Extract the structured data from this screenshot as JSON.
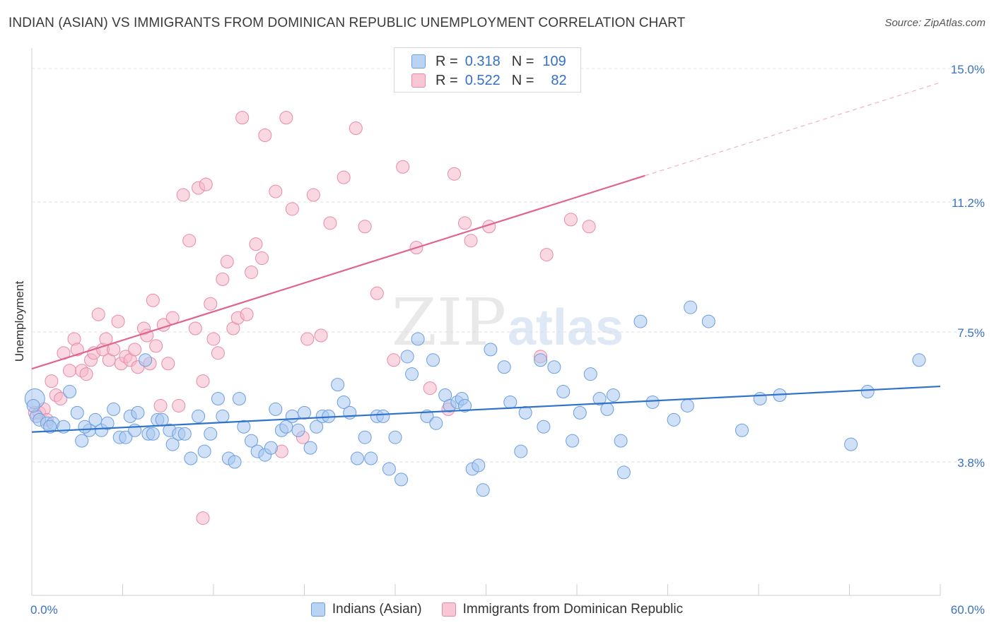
{
  "title": "INDIAN (ASIAN) VS IMMIGRANTS FROM DOMINICAN REPUBLIC UNEMPLOYMENT CORRELATION CHART",
  "source": "Source: ZipAtlas.com",
  "watermark": {
    "zip": "ZIP",
    "atlas": "atlas"
  },
  "legend": {
    "rows": [
      {
        "r_label": "R =",
        "r_value": "0.318",
        "n_label": "N =",
        "n_value": "109"
      },
      {
        "r_label": "R =",
        "r_value": "0.522",
        "n_label": "N =",
        "n_value": "82"
      }
    ]
  },
  "bottom_legend": {
    "series1": "Indians (Asian)",
    "series2": "Immigrants from Dominican Republic"
  },
  "colors": {
    "blue_fill": "#a9c8f0",
    "blue_stroke": "#6a9ee0",
    "blue_line": "#2f72cc",
    "pink_fill": "#f5b8cb",
    "pink_stroke": "#e889a8",
    "pink_line": "#e0648f",
    "axis_label": "#3a72c4"
  },
  "chart_data": {
    "type": "scatter",
    "title": "INDIAN (ASIAN) VS IMMIGRANTS FROM DOMINICAN REPUBLIC UNEMPLOYMENT CORRELATION CHART",
    "xlabel": "",
    "ylabel": "Unemployment",
    "xlim": [
      0,
      60
    ],
    "ylim": [
      0,
      15.5
    ],
    "x_tick_labels": [
      "0.0%",
      "60.0%"
    ],
    "y_ticks": [
      3.8,
      7.5,
      11.2,
      15.0
    ],
    "y_tick_labels": [
      "3.8%",
      "7.5%",
      "11.2%",
      "15.0%"
    ],
    "series": [
      {
        "name": "Indians (Asian)",
        "r": 0.318,
        "n": 109,
        "trend": {
          "x": [
            0,
            60
          ],
          "y": [
            4.65,
            5.95
          ]
        },
        "points": [
          [
            0.2,
            5.6
          ],
          [
            0.3,
            5.1
          ],
          [
            0.5,
            5.0
          ],
          [
            1.0,
            4.9
          ],
          [
            1.4,
            4.9
          ],
          [
            2.1,
            4.8
          ],
          [
            2.5,
            5.8
          ],
          [
            3.0,
            5.2
          ],
          [
            3.3,
            4.4
          ],
          [
            3.8,
            4.7
          ],
          [
            4.2,
            5.0
          ],
          [
            4.6,
            4.7
          ],
          [
            5.0,
            4.9
          ],
          [
            5.4,
            5.3
          ],
          [
            5.8,
            4.5
          ],
          [
            6.2,
            4.5
          ],
          [
            6.5,
            5.1
          ],
          [
            7.0,
            5.2
          ],
          [
            7.5,
            6.7
          ],
          [
            7.7,
            4.6
          ],
          [
            8.0,
            4.6
          ],
          [
            8.3,
            5.0
          ],
          [
            8.6,
            5.0
          ],
          [
            9.1,
            4.7
          ],
          [
            9.3,
            4.3
          ],
          [
            9.7,
            4.6
          ],
          [
            10.1,
            4.6
          ],
          [
            10.5,
            3.9
          ],
          [
            11.0,
            5.1
          ],
          [
            11.4,
            4.1
          ],
          [
            11.8,
            4.6
          ],
          [
            12.3,
            5.6
          ],
          [
            12.6,
            5.1
          ],
          [
            13.0,
            3.9
          ],
          [
            13.4,
            3.8
          ],
          [
            13.7,
            5.6
          ],
          [
            14.0,
            4.8
          ],
          [
            14.5,
            4.4
          ],
          [
            14.9,
            4.1
          ],
          [
            15.4,
            4.0
          ],
          [
            15.8,
            4.2
          ],
          [
            16.1,
            5.3
          ],
          [
            16.5,
            4.7
          ],
          [
            16.8,
            4.8
          ],
          [
            17.2,
            5.1
          ],
          [
            17.6,
            4.7
          ],
          [
            18.0,
            5.2
          ],
          [
            18.4,
            4.2
          ],
          [
            18.8,
            4.8
          ],
          [
            19.2,
            5.1
          ],
          [
            19.6,
            5.1
          ],
          [
            20.2,
            6.0
          ],
          [
            20.6,
            5.5
          ],
          [
            21.0,
            5.2
          ],
          [
            21.5,
            3.9
          ],
          [
            22.0,
            4.5
          ],
          [
            22.4,
            3.9
          ],
          [
            22.8,
            5.1
          ],
          [
            23.2,
            5.1
          ],
          [
            23.6,
            3.6
          ],
          [
            24.0,
            4.5
          ],
          [
            24.4,
            3.3
          ],
          [
            24.8,
            6.8
          ],
          [
            25.1,
            6.3
          ],
          [
            25.5,
            7.3
          ],
          [
            26.1,
            5.1
          ],
          [
            26.5,
            6.7
          ],
          [
            26.7,
            4.9
          ],
          [
            27.3,
            5.7
          ],
          [
            27.6,
            5.4
          ],
          [
            28.1,
            5.5
          ],
          [
            28.4,
            5.6
          ],
          [
            28.6,
            5.4
          ],
          [
            29.1,
            3.6
          ],
          [
            29.5,
            3.7
          ],
          [
            29.8,
            3.0
          ],
          [
            30.3,
            7.0
          ],
          [
            31.2,
            6.5
          ],
          [
            31.6,
            5.5
          ],
          [
            32.3,
            4.1
          ],
          [
            32.6,
            5.2
          ],
          [
            33.6,
            6.7
          ],
          [
            33.8,
            4.8
          ],
          [
            34.5,
            6.5
          ],
          [
            35.1,
            5.8
          ],
          [
            35.7,
            4.4
          ],
          [
            36.2,
            5.2
          ],
          [
            36.9,
            6.3
          ],
          [
            37.5,
            5.6
          ],
          [
            38.0,
            5.3
          ],
          [
            38.4,
            5.7
          ],
          [
            38.9,
            4.4
          ],
          [
            39.1,
            3.5
          ],
          [
            40.2,
            7.8
          ],
          [
            41.0,
            5.5
          ],
          [
            42.4,
            5.0
          ],
          [
            43.3,
            5.4
          ],
          [
            43.5,
            8.2
          ],
          [
            44.7,
            7.8
          ],
          [
            46.9,
            4.7
          ],
          [
            48.1,
            5.6
          ],
          [
            49.4,
            5.7
          ],
          [
            54.1,
            4.3
          ],
          [
            55.2,
            5.8
          ],
          [
            58.6,
            6.7
          ],
          [
            0.1,
            5.4
          ],
          [
            1.2,
            4.8
          ],
          [
            3.5,
            4.8
          ],
          [
            6.8,
            4.7
          ]
        ]
      },
      {
        "name": "Immigrants from Dominican Republic",
        "r": 0.522,
        "n": 82,
        "trend": {
          "x": [
            0,
            40.5
          ],
          "y": [
            6.45,
            11.95
          ]
        },
        "trend_dashed": {
          "x": [
            40.5,
            60
          ],
          "y": [
            11.95,
            14.6
          ]
        },
        "points": [
          [
            0.2,
            5.2
          ],
          [
            0.5,
            5.2
          ],
          [
            0.8,
            5.3
          ],
          [
            1.0,
            5.0
          ],
          [
            1.3,
            6.1
          ],
          [
            1.6,
            5.7
          ],
          [
            1.9,
            5.6
          ],
          [
            2.1,
            6.9
          ],
          [
            2.5,
            6.4
          ],
          [
            2.8,
            7.3
          ],
          [
            3.0,
            7.0
          ],
          [
            3.3,
            6.4
          ],
          [
            3.6,
            6.3
          ],
          [
            3.9,
            6.7
          ],
          [
            4.1,
            6.9
          ],
          [
            4.4,
            8.0
          ],
          [
            4.7,
            7.0
          ],
          [
            4.9,
            7.3
          ],
          [
            5.1,
            6.7
          ],
          [
            5.4,
            7.0
          ],
          [
            5.7,
            7.8
          ],
          [
            5.9,
            6.6
          ],
          [
            6.2,
            6.8
          ],
          [
            6.5,
            6.7
          ],
          [
            6.8,
            7.0
          ],
          [
            7.0,
            6.5
          ],
          [
            7.4,
            7.6
          ],
          [
            7.6,
            7.4
          ],
          [
            7.8,
            6.6
          ],
          [
            8.0,
            8.4
          ],
          [
            8.2,
            7.1
          ],
          [
            8.5,
            5.4
          ],
          [
            8.7,
            7.7
          ],
          [
            9.0,
            6.6
          ],
          [
            9.3,
            7.9
          ],
          [
            9.7,
            5.4
          ],
          [
            10.0,
            11.4
          ],
          [
            10.4,
            10.1
          ],
          [
            10.8,
            7.6
          ],
          [
            11.0,
            11.6
          ],
          [
            11.3,
            6.1
          ],
          [
            11.5,
            11.7
          ],
          [
            11.8,
            8.3
          ],
          [
            12.0,
            7.3
          ],
          [
            12.3,
            6.9
          ],
          [
            12.6,
            9.0
          ],
          [
            12.9,
            9.5
          ],
          [
            13.3,
            7.6
          ],
          [
            13.6,
            7.9
          ],
          [
            13.9,
            13.6
          ],
          [
            14.2,
            8.0
          ],
          [
            14.5,
            9.2
          ],
          [
            14.8,
            10.0
          ],
          [
            15.2,
            9.6
          ],
          [
            15.4,
            13.1
          ],
          [
            16.1,
            11.5
          ],
          [
            16.5,
            4.1
          ],
          [
            16.8,
            13.6
          ],
          [
            17.2,
            11.0
          ],
          [
            17.9,
            4.5
          ],
          [
            18.2,
            7.3
          ],
          [
            18.6,
            11.4
          ],
          [
            19.1,
            7.4
          ],
          [
            19.7,
            10.6
          ],
          [
            20.6,
            11.9
          ],
          [
            21.4,
            13.3
          ],
          [
            22.0,
            10.5
          ],
          [
            22.8,
            8.6
          ],
          [
            23.9,
            6.7
          ],
          [
            24.5,
            12.2
          ],
          [
            25.4,
            9.9
          ],
          [
            26.3,
            5.9
          ],
          [
            27.5,
            5.3
          ],
          [
            27.9,
            12.0
          ],
          [
            28.6,
            10.6
          ],
          [
            29.0,
            10.1
          ],
          [
            30.2,
            10.5
          ],
          [
            33.6,
            6.8
          ],
          [
            34.0,
            9.7
          ],
          [
            35.6,
            10.7
          ],
          [
            36.8,
            10.5
          ],
          [
            11.3,
            2.2
          ]
        ]
      }
    ]
  }
}
